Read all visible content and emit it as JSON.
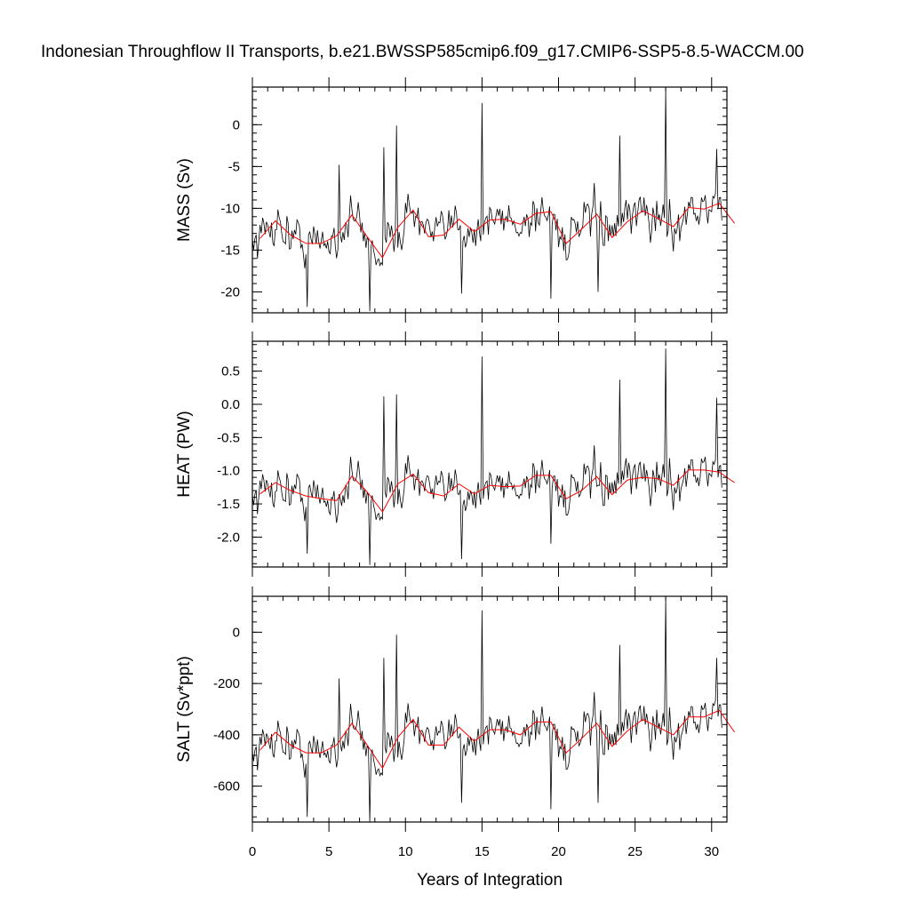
{
  "title": "Indonesian Throughflow II Transports, b.e21.BWSSP585cmip6.f09_g17.CMIP6-SSP5-8.5-WACCM.00",
  "chart_data": {
    "type": "line",
    "xlabel": "Years of Integration",
    "xlim": [
      0,
      31
    ],
    "xticks": [
      0,
      5,
      10,
      15,
      20,
      25,
      30
    ],
    "xtick_labels": [
      "0",
      "5",
      "10",
      "15",
      "20",
      "25",
      "30"
    ],
    "series_colors": {
      "monthly": "#000000",
      "annual": "#ff0000"
    },
    "panels": [
      {
        "name": "mass",
        "ylabel": "MASS (Sv)",
        "ylim": [
          -22.5,
          4.5
        ],
        "yticks": [
          0,
          -5,
          -10,
          -15,
          -20
        ],
        "ytick_labels": [
          "0",
          "-5",
          "-10",
          "-15",
          "-20"
        ],
        "annual": [
          -13.6,
          -11.5,
          -13.2,
          -14.2,
          -14.2,
          -13.3,
          -10.8,
          -13.4,
          -15.9,
          -12.3,
          -10.2,
          -13.4,
          -13.2,
          -11.3,
          -12.8,
          -11.4,
          -11.3,
          -11.9,
          -10.6,
          -10.4,
          -14.2,
          -12.5,
          -10.7,
          -13.5,
          -11.6,
          -10.3,
          -11.2,
          -12.2,
          -9.9,
          -10.1,
          -9.4,
          -11.8
        ],
        "spikes": [
          {
            "x": 15.0,
            "y": 2.6
          },
          {
            "x": 27.0,
            "y": 4.4
          },
          {
            "x": 9.4,
            "y": -0.1
          },
          {
            "x": 8.6,
            "y": -2.7
          },
          {
            "x": 7.7,
            "y": -22.3
          },
          {
            "x": 3.6,
            "y": -21.8
          },
          {
            "x": 19.5,
            "y": -20.8
          },
          {
            "x": 13.7,
            "y": -20.2
          },
          {
            "x": 22.6,
            "y": -20.0
          },
          {
            "x": 24.0,
            "y": -1.3
          },
          {
            "x": 30.3,
            "y": -2.9
          },
          {
            "x": 5.7,
            "y": -4.8
          }
        ]
      },
      {
        "name": "heat",
        "ylabel": "HEAT (PW)",
        "ylim": [
          -2.45,
          0.95
        ],
        "yticks": [
          0.5,
          0.0,
          -0.5,
          -1.0,
          -1.5,
          -2.0
        ],
        "ytick_labels": [
          "0.5",
          "0.0",
          "-0.5",
          "-1.0",
          "-1.5",
          "-2.0"
        ],
        "annual": [
          -1.35,
          -1.18,
          -1.3,
          -1.38,
          -1.42,
          -1.45,
          -1.08,
          -1.32,
          -1.62,
          -1.2,
          -1.05,
          -1.33,
          -1.38,
          -1.2,
          -1.35,
          -1.22,
          -1.24,
          -1.23,
          -1.07,
          -1.07,
          -1.42,
          -1.3,
          -1.09,
          -1.36,
          -1.14,
          -1.1,
          -1.12,
          -1.22,
          -0.99,
          -0.99,
          -1.02,
          -1.18
        ],
        "spikes": [
          {
            "x": 15.0,
            "y": 0.72
          },
          {
            "x": 27.0,
            "y": 0.84
          },
          {
            "x": 9.4,
            "y": 0.15
          },
          {
            "x": 8.6,
            "y": 0.12
          },
          {
            "x": 7.7,
            "y": -2.42
          },
          {
            "x": 3.6,
            "y": -2.25
          },
          {
            "x": 13.7,
            "y": -2.33
          },
          {
            "x": 24.0,
            "y": 0.37
          },
          {
            "x": 30.3,
            "y": 0.1
          },
          {
            "x": 19.5,
            "y": -2.1
          }
        ]
      },
      {
        "name": "salt",
        "ylabel": "SALT (Sv*ppt)",
        "ylim": [
          -740,
          140
        ],
        "yticks": [
          0,
          -200,
          -400,
          -600
        ],
        "ytick_labels": [
          "0",
          "-200",
          "-400",
          "-600"
        ],
        "annual": [
          -460,
          -390,
          -440,
          -470,
          -470,
          -440,
          -355,
          -440,
          -530,
          -410,
          -340,
          -440,
          -440,
          -370,
          -425,
          -380,
          -380,
          -400,
          -350,
          -350,
          -470,
          -415,
          -355,
          -445,
          -385,
          -340,
          -370,
          -400,
          -330,
          -330,
          -305,
          -390
        ],
        "spikes": [
          {
            "x": 15.0,
            "y": 85
          },
          {
            "x": 27.0,
            "y": 135
          },
          {
            "x": 9.4,
            "y": -10
          },
          {
            "x": 8.6,
            "y": -100
          },
          {
            "x": 7.7,
            "y": -745
          },
          {
            "x": 3.6,
            "y": -720
          },
          {
            "x": 19.5,
            "y": -690
          },
          {
            "x": 22.6,
            "y": -665
          },
          {
            "x": 13.7,
            "y": -665
          },
          {
            "x": 24.0,
            "y": -50
          },
          {
            "x": 30.3,
            "y": -100
          },
          {
            "x": 5.7,
            "y": -180
          }
        ]
      }
    ]
  }
}
